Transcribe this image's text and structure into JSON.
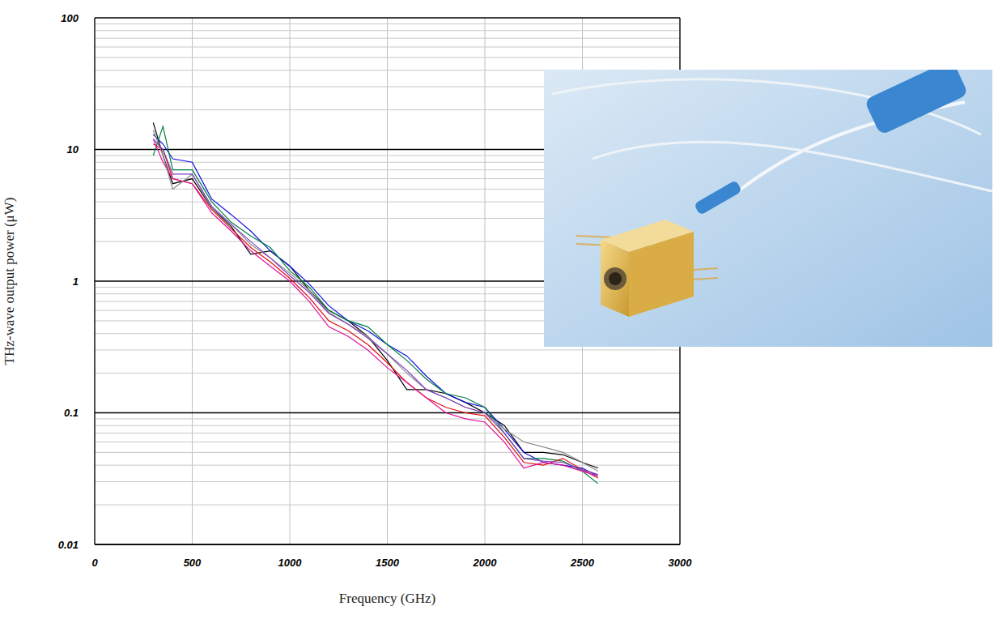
{
  "chart_data": {
    "type": "line",
    "xlabel": "Frequency (GHz)",
    "ylabel": "THz-wave output power (μW)",
    "x": [
      300,
      350,
      400,
      500,
      600,
      700,
      800,
      900,
      1000,
      1100,
      1200,
      1300,
      1400,
      1500,
      1600,
      1700,
      1800,
      1900,
      2000,
      2100,
      2200,
      2300,
      2400,
      2500,
      2580
    ],
    "series": [
      {
        "color": "#000000",
        "values": [
          16,
          9,
          5.5,
          6,
          3.6,
          2.6,
          1.6,
          1.7,
          1.3,
          0.85,
          0.6,
          0.5,
          0.38,
          0.25,
          0.15,
          0.15,
          0.14,
          0.12,
          0.1,
          0.08,
          0.05,
          0.05,
          0.048,
          0.042,
          0.038
        ]
      },
      {
        "color": "#1010e0",
        "values": [
          13,
          11,
          8.5,
          8,
          4.2,
          3.2,
          2.4,
          1.7,
          1.3,
          0.95,
          0.65,
          0.5,
          0.42,
          0.33,
          0.27,
          0.19,
          0.14,
          0.12,
          0.11,
          0.075,
          0.05,
          0.042,
          0.04,
          0.038,
          0.033
        ]
      },
      {
        "color": "#008040",
        "values": [
          9,
          15,
          7,
          7,
          4,
          2.8,
          2.2,
          1.8,
          1.2,
          0.9,
          0.6,
          0.5,
          0.45,
          0.33,
          0.25,
          0.18,
          0.14,
          0.13,
          0.11,
          0.07,
          0.045,
          0.045,
          0.043,
          0.036,
          0.029
        ]
      },
      {
        "color": "#e01010",
        "values": [
          11,
          10,
          6,
          5.5,
          3.5,
          2.5,
          1.8,
          1.4,
          1.05,
          0.75,
          0.5,
          0.42,
          0.33,
          0.24,
          0.17,
          0.13,
          0.11,
          0.1,
          0.095,
          0.065,
          0.042,
          0.04,
          0.045,
          0.037,
          0.032
        ]
      },
      {
        "color": "#e0109a",
        "values": [
          12,
          8,
          6,
          5.5,
          3.3,
          2.4,
          1.7,
          1.3,
          1,
          0.7,
          0.45,
          0.38,
          0.3,
          0.22,
          0.17,
          0.13,
          0.1,
          0.09,
          0.085,
          0.06,
          0.038,
          0.042,
          0.04,
          0.036,
          0.033
        ]
      },
      {
        "color": "#8c8c8c",
        "values": [
          14,
          9,
          5,
          6.5,
          3.6,
          2.7,
          1.9,
          1.5,
          1.15,
          0.85,
          0.58,
          0.47,
          0.38,
          0.28,
          0.2,
          0.15,
          0.13,
          0.11,
          0.1,
          0.075,
          0.06,
          0.055,
          0.05,
          0.042,
          0.036
        ]
      },
      {
        "color": "#8040c0",
        "values": [
          12,
          10,
          6.5,
          6.5,
          3.7,
          2.7,
          2,
          1.5,
          1.1,
          0.82,
          0.57,
          0.47,
          0.37,
          0.28,
          0.21,
          0.15,
          0.13,
          0.11,
          0.1,
          0.07,
          0.045,
          0.043,
          0.042,
          0.037,
          0.034
        ]
      }
    ],
    "xlim": [
      0,
      3000
    ],
    "xticks": [
      0,
      500,
      1000,
      1500,
      2000,
      2500,
      3000
    ],
    "ylim": [
      0.01,
      100
    ],
    "yticks": [
      0.01,
      0.1,
      1,
      10,
      100
    ],
    "log": "y",
    "grid": true
  }
}
